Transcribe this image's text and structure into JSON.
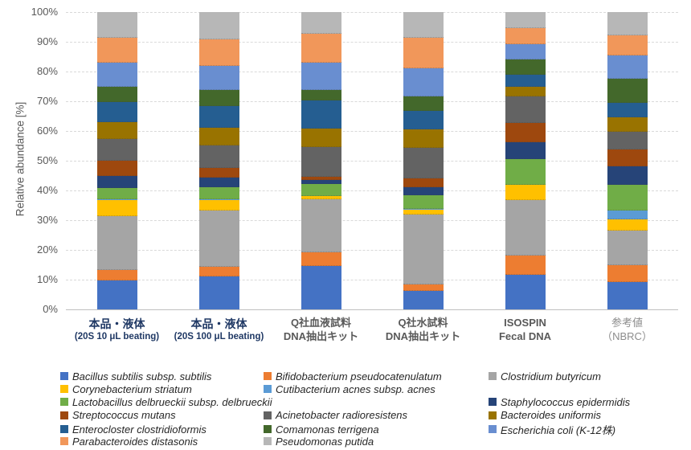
{
  "chart_data": {
    "type": "bar",
    "stacked": true,
    "ylabel": "Relative abundance [%]",
    "ylim": [
      0,
      100
    ],
    "grid": "horizontal-dashed",
    "legend_position": "bottom",
    "ytick_labels": [
      "0%",
      "10%",
      "20%",
      "30%",
      "40%",
      "50%",
      "60%",
      "70%",
      "80%",
      "90%",
      "100%"
    ],
    "categories": [
      {
        "line1": "本品・液体",
        "line2": "(20S 10 μL beating)",
        "style": "navy"
      },
      {
        "line1": "本品・液体",
        "line2": "(20S 100 μL beating)",
        "style": "navy"
      },
      {
        "line1": "Q社血液試料",
        "line2": "DNA抽出キット",
        "style": "gray"
      },
      {
        "line1": "Q社水試料",
        "line2": "DNA抽出キット",
        "style": "gray"
      },
      {
        "line1": "ISOSPIN",
        "line2": "Fecal DNA",
        "style": "gray"
      },
      {
        "line1": "参考値",
        "line2": "（NBRC）",
        "style": "ref"
      }
    ],
    "series": [
      {
        "name": "Bacillus subtilis subsp. subtilis",
        "color": "#4472C4",
        "values": [
          9.8,
          11.2,
          14.5,
          6.3,
          11.7,
          9.3
        ]
      },
      {
        "name": "Bifidobacterium pseudocatenulatum",
        "color": "#ED7D31",
        "values": [
          3.5,
          3.1,
          4.6,
          2.0,
          6.3,
          5.6
        ]
      },
      {
        "name": "Clostridium butyricum",
        "color": "#A5A5A5",
        "values": [
          18.0,
          19.0,
          18.0,
          23.5,
          18.9,
          11.5
        ]
      },
      {
        "name": "Corynebacterium striatum",
        "color": "#FFC000",
        "values": [
          5.4,
          3.5,
          0.9,
          1.7,
          5.0,
          3.8
        ]
      },
      {
        "name": "Cutibacterium acnes subsp. acnes",
        "color": "#5B9BD5",
        "values": [
          0.3,
          0.3,
          0.2,
          0.2,
          0.0,
          3.1
        ]
      },
      {
        "name": "Lactobacillus delbrueckii subsp. delbrueckii",
        "color": "#70AD47",
        "values": [
          3.9,
          4.0,
          4.0,
          4.8,
          8.6,
          8.6
        ]
      },
      {
        "name": "Staphylococcus epidermidis",
        "color": "#264478",
        "values": [
          4.1,
          3.3,
          1.2,
          2.7,
          5.8,
          6.3
        ]
      },
      {
        "name": "Streptococcus mutans",
        "color": "#9E480E",
        "values": [
          4.9,
          3.2,
          1.3,
          2.9,
          6.5,
          5.6
        ]
      },
      {
        "name": "Acinetobacter radioresistens",
        "color": "#636363",
        "values": [
          7.4,
          7.6,
          10.0,
          10.3,
          8.8,
          5.9
        ]
      },
      {
        "name": "Bacteroides uniformis",
        "color": "#997300",
        "values": [
          5.8,
          5.9,
          6.2,
          6.2,
          3.2,
          4.9
        ]
      },
      {
        "name": "Enterocloster clostridioformis",
        "color": "#255E91",
        "values": [
          6.7,
          7.4,
          9.5,
          6.1,
          4.2,
          5.0
        ]
      },
      {
        "name": "Comamonas terrigena",
        "color": "#43682B",
        "values": [
          5.1,
          5.4,
          3.4,
          4.9,
          5.2,
          8.1
        ]
      },
      {
        "name": "Escherichia coli (K-12株)",
        "color": "#698ED0",
        "values": [
          8.1,
          8.1,
          9.2,
          9.5,
          5.0,
          7.6
        ]
      },
      {
        "name": "Parabacteroides distasonis",
        "color": "#F1975A",
        "values": [
          8.4,
          8.8,
          9.8,
          10.2,
          5.4,
          7.0
        ]
      },
      {
        "name": "Pseudomonas putida",
        "color": "#B7B7B7",
        "values": [
          8.6,
          9.2,
          7.2,
          8.7,
          5.4,
          7.7
        ]
      }
    ]
  },
  "legend": {
    "rows": [
      [
        {
          "s": 0,
          "c": 1
        },
        {
          "s": 1,
          "c": 2
        },
        {
          "s": 2,
          "c": 3
        }
      ],
      [
        {
          "s": 3,
          "c": 1
        },
        {
          "s": 4,
          "c": 2
        }
      ],
      [
        {
          "s": 5,
          "c": 1,
          "span": 2
        },
        {
          "s": 6,
          "c": 3
        }
      ],
      [
        {
          "s": 7,
          "c": 1
        },
        {
          "s": 8,
          "c": 2
        },
        {
          "s": 9,
          "c": 3
        }
      ],
      [
        {
          "s": 10,
          "c": 1
        },
        {
          "s": 11,
          "c": 2
        },
        {
          "s": 12,
          "c": 3
        }
      ],
      [
        {
          "s": 13,
          "c": 1
        },
        {
          "s": 14,
          "c": 2
        }
      ]
    ]
  }
}
